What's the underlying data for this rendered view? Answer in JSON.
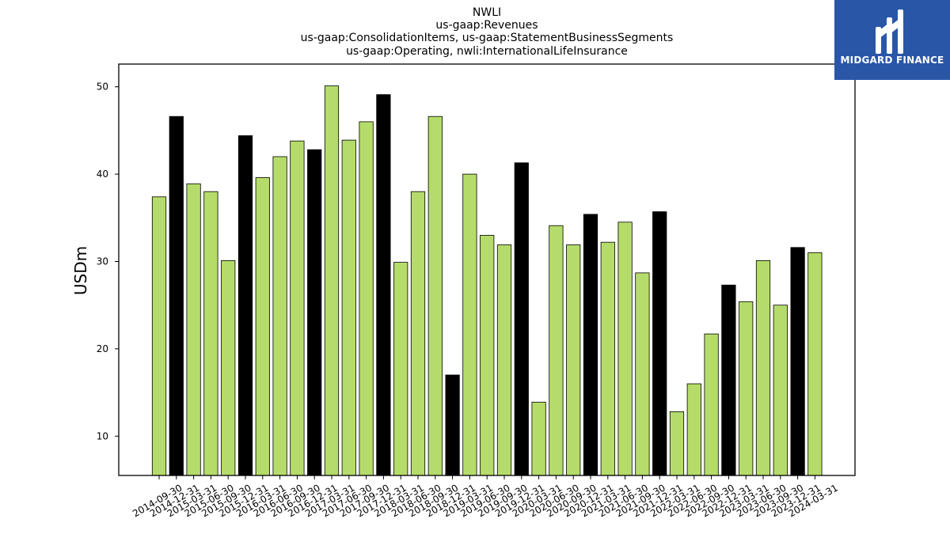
{
  "chart_data": {
    "type": "bar",
    "title_lines": [
      "NWLI",
      "us-gaap:Revenues",
      "us-gaap:ConsolidationItems, us-gaap:StatementBusinessSegments",
      "us-gaap:Operating, nwli:InternationalLifeInsurance"
    ],
    "ylabel": "USDm",
    "ylim": [
      5.5,
      52.6
    ],
    "yticks": [
      10,
      20,
      30,
      40,
      50
    ],
    "colors": {
      "quarter": "#b5dc6a",
      "year_end": "#000000",
      "edge": "#000000"
    },
    "categories": [
      "2014-09-30",
      "2014-12-31",
      "2015-03-31",
      "2015-06-30",
      "2015-09-30",
      "2015-12-31",
      "2016-03-31",
      "2016-06-30",
      "2016-09-30",
      "2016-12-31",
      "2017-03-31",
      "2017-06-30",
      "2017-09-30",
      "2017-12-31",
      "2018-03-31",
      "2018-06-30",
      "2018-09-30",
      "2018-12-31",
      "2019-03-31",
      "2019-06-30",
      "2019-09-30",
      "2019-12-31",
      "2020-03-31",
      "2020-06-30",
      "2020-09-30",
      "2020-12-31",
      "2021-03-31",
      "2021-06-30",
      "2021-09-30",
      "2021-12-31",
      "2022-03-31",
      "2022-06-30",
      "2022-09-30",
      "2022-12-31",
      "2023-03-31",
      "2023-06-30",
      "2023-09-30",
      "2023-12-31",
      "2024-03-31"
    ],
    "values": [
      37.4,
      46.6,
      38.9,
      38.0,
      30.1,
      44.4,
      39.6,
      42.0,
      43.8,
      42.8,
      50.1,
      43.9,
      46.0,
      49.1,
      29.9,
      38.0,
      46.6,
      17.0,
      40.0,
      33.0,
      31.9,
      41.3,
      13.9,
      34.1,
      31.9,
      35.4,
      32.2,
      34.5,
      28.7,
      35.7,
      12.8,
      16.0,
      21.7,
      27.3,
      25.4,
      30.1,
      25.0,
      31.6,
      31.0
    ]
  },
  "logo": {
    "text": "MIDGARD FINANCE"
  }
}
